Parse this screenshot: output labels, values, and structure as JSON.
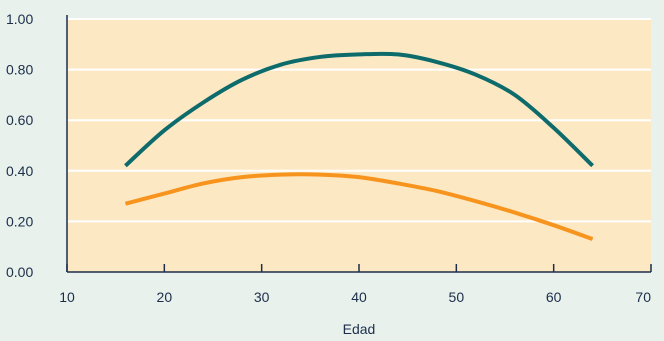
{
  "chart_data": {
    "type": "line",
    "title": "",
    "xlabel": "Edad",
    "ylabel": "",
    "xlim": [
      10,
      70
    ],
    "ylim": [
      0,
      1
    ],
    "x_ticks": [
      "10",
      "20",
      "30",
      "40",
      "50",
      "60",
      "70"
    ],
    "y_ticks": [
      "0.00",
      "0.20",
      "0.40",
      "0.60",
      "0.80",
      "1.00"
    ],
    "grid": "horizontal",
    "colors": {
      "page_background": "#e8f1ec",
      "plot_background": "#fde8c4",
      "gridline": "#ffffff",
      "axis": "#1c2e4a"
    },
    "series": [
      {
        "color": "#0e6b6b",
        "x": [
          16,
          20,
          24,
          28,
          32,
          36,
          40,
          44,
          48,
          52,
          56,
          60,
          64
        ],
        "y": [
          0.42,
          0.56,
          0.67,
          0.76,
          0.82,
          0.85,
          0.86,
          0.86,
          0.83,
          0.78,
          0.7,
          0.57,
          0.42
        ]
      },
      {
        "color": "#f7941d",
        "x": [
          16,
          20,
          24,
          28,
          32,
          36,
          40,
          44,
          48,
          52,
          56,
          60,
          64
        ],
        "y": [
          0.27,
          0.31,
          0.35,
          0.375,
          0.385,
          0.385,
          0.375,
          0.35,
          0.32,
          0.28,
          0.235,
          0.185,
          0.13
        ]
      }
    ]
  }
}
